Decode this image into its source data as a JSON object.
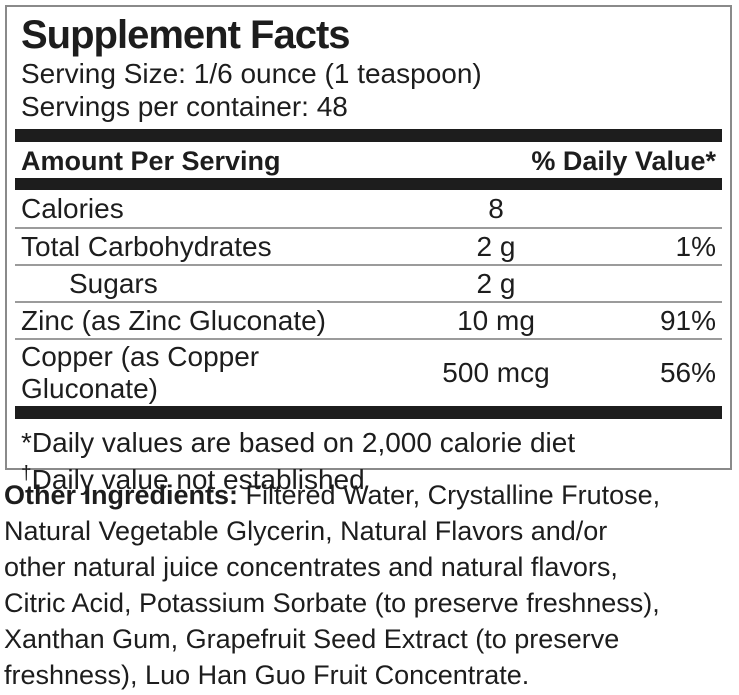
{
  "colors": {
    "text": "#1d1d1d",
    "bar": "#1d1d1d",
    "box_border": "#8a8a8a",
    "row_hairline": "#9b9b9b",
    "background": "#ffffff"
  },
  "panel": {
    "title": "Supplement Facts",
    "serving_size": "Serving Size: 1/6 ounce (1 teaspoon)",
    "servings_per_container": "Servings per container: 48",
    "columns": {
      "amount_per_serving": "Amount Per Serving",
      "daily_value": "% Daily Value*"
    },
    "rows": [
      {
        "name": "Calories",
        "amount": "8",
        "dv": ""
      },
      {
        "name": "Total Carbohydrates",
        "amount": "2 g",
        "dv": "1%"
      },
      {
        "name": "Sugars",
        "amount": "2 g",
        "dv": ""
      },
      {
        "name": "Zinc (as Zinc Gluconate)",
        "amount": "10 mg",
        "dv": "91%"
      },
      {
        "name": "Copper (as Copper Gluconate)",
        "amount": "500 mcg",
        "dv": "56%"
      }
    ],
    "footnotes": [
      {
        "marker": "*",
        "text": "Daily values are based on 2,000 calorie diet"
      },
      {
        "marker": "†",
        "text": "Daily value not established"
      }
    ]
  },
  "other_ingredients": {
    "label": "Other Ingredients:",
    "lines": [
      "Filtered  Water, Crystalline Frutose,",
      "Natural Vegetable Glycerin, Natural Flavors and/or",
      "other natural juice concentrates and natural flavors,",
      "Citric Acid, Potassium Sorbate (to preserve freshness),",
      "Xanthan Gum, Grapefruit Seed Extract (to preserve",
      "freshness), Luo Han Guo Fruit Concentrate."
    ]
  }
}
